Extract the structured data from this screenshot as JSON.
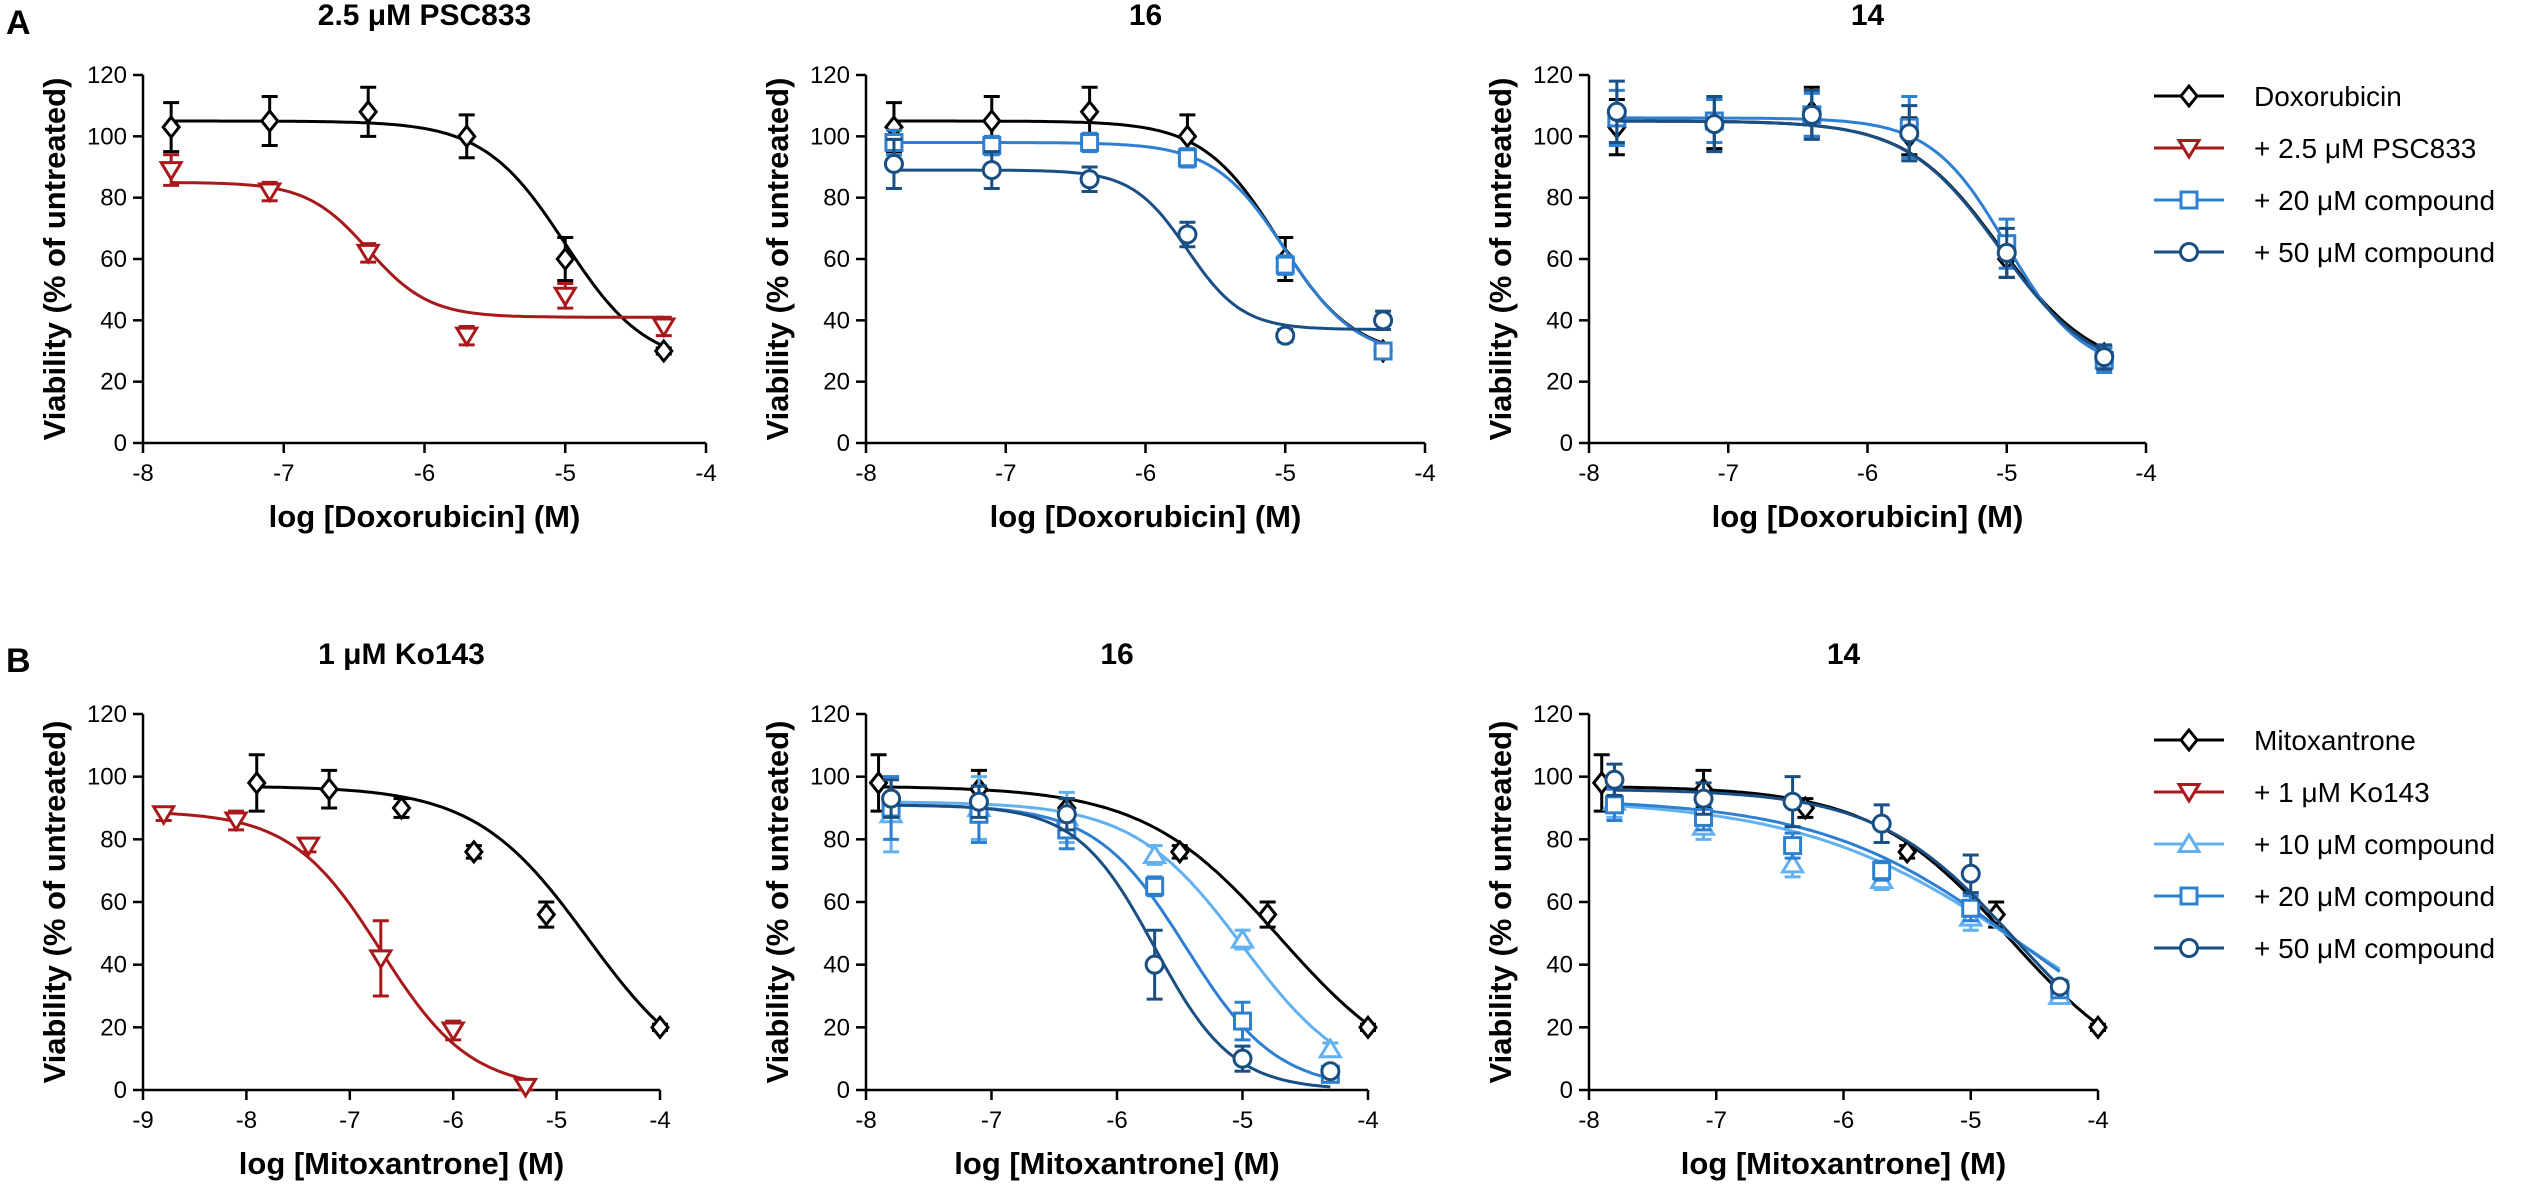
{
  "figure": {
    "panel_labels": [
      "A",
      "B"
    ]
  },
  "chart_data": [
    {
      "id": "a1",
      "panel": "A",
      "type": "line",
      "title": "2.5 μM PSC833",
      "xlabel": "log [Doxorubicin] (M)",
      "ylabel": "Viability (% of untreated)",
      "xlim": [
        -8,
        -4
      ],
      "ylim": [
        0,
        120
      ],
      "xticks": [
        -8,
        -7,
        -6,
        -5,
        -4
      ],
      "yticks": [
        0,
        20,
        40,
        60,
        80,
        100,
        120
      ],
      "series": [
        {
          "name": "Doxorubicin",
          "color": "#000000",
          "marker": "diamond",
          "x": [
            -7.8,
            -7.1,
            -6.4,
            -5.7,
            -5.0,
            -4.3
          ],
          "y": [
            103,
            105,
            108,
            100,
            60,
            30
          ],
          "err": [
            8,
            8,
            8,
            7,
            7,
            1
          ],
          "fit": {
            "top": 105,
            "bottom": 25,
            "ec50": -5.0,
            "hill": 1.5
          }
        },
        {
          "name": "+ 2.5 μM PSC833",
          "color": "#a8191b",
          "marker": "tri-down",
          "x": [
            -7.8,
            -7.1,
            -6.4,
            -5.7,
            -5.0,
            -4.3
          ],
          "y": [
            89,
            82,
            62,
            35,
            48,
            38
          ],
          "err": [
            5,
            3,
            3,
            3,
            4,
            3
          ],
          "fit": {
            "top": 85,
            "bottom": 41,
            "ec50": -6.4,
            "hill": 2.0
          }
        }
      ]
    },
    {
      "id": "a2",
      "panel": "A",
      "type": "line",
      "title": "16",
      "xlabel": "log [Doxorubicin] (M)",
      "ylabel": "Viability (% of untreated)",
      "xlim": [
        -8,
        -4
      ],
      "ylim": [
        0,
        120
      ],
      "xticks": [
        -8,
        -7,
        -6,
        -5,
        -4
      ],
      "yticks": [
        0,
        20,
        40,
        60,
        80,
        100,
        120
      ],
      "series": [
        {
          "name": "Doxorubicin",
          "color": "#000000",
          "marker": "diamond",
          "x": [
            -7.8,
            -7.1,
            -6.4,
            -5.7,
            -5.0,
            -4.3
          ],
          "y": [
            103,
            105,
            108,
            100,
            60,
            30
          ],
          "err": [
            8,
            8,
            8,
            7,
            7,
            1
          ],
          "fit": {
            "top": 105,
            "bottom": 28,
            "ec50": -5.05,
            "hill": 1.6
          }
        },
        {
          "name": "+ 20 μM compound",
          "color": "#2f7fd1",
          "marker": "square",
          "x": [
            -7.8,
            -7.1,
            -6.4,
            -5.7,
            -5.0,
            -4.3
          ],
          "y": [
            98,
            97,
            98,
            93,
            58,
            30
          ],
          "err": [
            4,
            3,
            3,
            3,
            3,
            1
          ],
          "fit": {
            "top": 98,
            "bottom": 28,
            "ec50": -5.0,
            "hill": 1.7
          }
        },
        {
          "name": "+ 50 μM compound",
          "color": "#1a4f83",
          "marker": "circle",
          "x": [
            -7.8,
            -7.1,
            -6.4,
            -5.7,
            -5.0,
            -4.3
          ],
          "y": [
            91,
            89,
            86,
            68,
            35,
            40
          ],
          "err": [
            8,
            6,
            4,
            4,
            2,
            3
          ],
          "fit": {
            "top": 89,
            "bottom": 37,
            "ec50": -5.7,
            "hill": 2.2
          }
        }
      ]
    },
    {
      "id": "a3",
      "panel": "A",
      "type": "line",
      "title": "14",
      "xlabel": "log [Doxorubicin] (M)",
      "ylabel": "Viability (% of untreated)",
      "xlim": [
        -8,
        -4
      ],
      "ylim": [
        0,
        120
      ],
      "xticks": [
        -8,
        -7,
        -6,
        -5,
        -4
      ],
      "yticks": [
        0,
        20,
        40,
        60,
        80,
        100,
        120
      ],
      "series": [
        {
          "name": "Doxorubicin",
          "color": "#000000",
          "marker": "diamond",
          "x": [
            -7.8,
            -7.1,
            -6.4,
            -5.7,
            -5.0,
            -4.3
          ],
          "y": [
            103,
            104,
            108,
            100,
            60,
            29
          ],
          "err": [
            9,
            8,
            8,
            6,
            6,
            2
          ],
          "fit": {
            "top": 105,
            "bottom": 23,
            "ec50": -5.05,
            "hill": 1.3
          }
        },
        {
          "name": "+ 20 μM compound",
          "color": "#2f7fd1",
          "marker": "square",
          "x": [
            -7.8,
            -7.1,
            -6.4,
            -5.7,
            -5.0,
            -4.3
          ],
          "y": [
            106,
            105,
            107,
            103,
            65,
            27
          ],
          "err": [
            9,
            7,
            7,
            10,
            8,
            4
          ],
          "fit": {
            "top": 106,
            "bottom": 23,
            "ec50": -5.0,
            "hill": 1.6
          }
        },
        {
          "name": "+ 50 μM compound",
          "color": "#1a4f83",
          "marker": "circle",
          "x": [
            -7.8,
            -7.1,
            -6.4,
            -5.7,
            -5.0,
            -4.3
          ],
          "y": [
            108,
            104,
            107,
            101,
            62,
            28
          ],
          "err": [
            10,
            9,
            8,
            9,
            8,
            4
          ],
          "fit": {
            "top": 105,
            "bottom": 22,
            "ec50": -5.05,
            "hill": 1.3
          }
        }
      ],
      "legend": [
        "Doxorubicin",
        "+ 2.5 μM PSC833",
        "+ 20 μM compound",
        "+ 50 μM compound"
      ]
    },
    {
      "id": "b1",
      "panel": "B",
      "type": "line",
      "title": "1 μM Ko143",
      "xlabel": "log [Mitoxantrone] (M)",
      "ylabel": "Viability (% of untreated)",
      "xlim": [
        -9,
        -4
      ],
      "ylim": [
        0,
        120
      ],
      "xticks": [
        -9,
        -8,
        -7,
        -6,
        -5,
        -4
      ],
      "yticks": [
        0,
        20,
        40,
        60,
        80,
        100,
        120
      ],
      "series": [
        {
          "name": "Mitoxantrone",
          "color": "#000000",
          "marker": "diamond",
          "x": [
            -7.9,
            -7.2,
            -6.5,
            -5.8,
            -5.1,
            -4.0
          ],
          "y": [
            98,
            96,
            90,
            76,
            56,
            20
          ],
          "err": [
            9,
            6,
            3,
            2,
            4,
            1
          ],
          "fit": {
            "top": 97,
            "bottom": 0,
            "ec50": -4.7,
            "hill": 0.8
          }
        },
        {
          "name": "+ 1 μM Ko143",
          "color": "#a8191b",
          "marker": "tri-down",
          "x": [
            -8.8,
            -8.1,
            -7.4,
            -6.7,
            -6.0,
            -5.3
          ],
          "y": [
            88,
            86,
            78,
            42,
            19,
            1
          ],
          "err": [
            2,
            3,
            2,
            12,
            3,
            1
          ],
          "fit": {
            "top": 89,
            "bottom": 0,
            "ec50": -6.7,
            "hill": 1.0
          }
        }
      ]
    },
    {
      "id": "b2",
      "panel": "B",
      "type": "line",
      "title": "16",
      "xlabel": "log [Mitoxantrone] (M)",
      "ylabel": "Viability (% of untreated)",
      "xlim": [
        -8,
        -4
      ],
      "ylim": [
        0,
        120
      ],
      "xticks": [
        -8,
        -7,
        -6,
        -5,
        -4
      ],
      "yticks": [
        0,
        20,
        40,
        60,
        80,
        100,
        120
      ],
      "series": [
        {
          "name": "Mitoxantrone",
          "color": "#000000",
          "marker": "diamond",
          "x": [
            -7.9,
            -7.1,
            -6.4,
            -5.5,
            -4.8,
            -4.0
          ],
          "y": [
            98,
            96,
            90,
            76,
            56,
            20
          ],
          "err": [
            9,
            6,
            3,
            2,
            4,
            1
          ],
          "fit": {
            "top": 97,
            "bottom": 0,
            "ec50": -4.7,
            "hill": 0.8
          }
        },
        {
          "name": "+ 10 μM compound",
          "color": "#62b0ee",
          "marker": "tri-up",
          "x": [
            -7.8,
            -7.1,
            -6.4,
            -5.7,
            -5.0,
            -4.3
          ],
          "y": [
            88,
            90,
            87,
            75,
            48,
            13
          ],
          "err": [
            12,
            10,
            8,
            3,
            3,
            2
          ],
          "fit": {
            "top": 92,
            "bottom": 0,
            "ec50": -5.0,
            "hill": 1.0
          }
        },
        {
          "name": "+ 20 μM compound",
          "color": "#2f7fd1",
          "marker": "square",
          "x": [
            -7.8,
            -7.1,
            -6.4,
            -5.7,
            -5.0,
            -4.3
          ],
          "y": [
            90,
            88,
            83,
            65,
            22,
            5
          ],
          "err": [
            10,
            9,
            6,
            3,
            6,
            2
          ],
          "fit": {
            "top": 91,
            "bottom": 0,
            "ec50": -5.45,
            "hill": 1.2
          }
        },
        {
          "name": "+ 50 μM compound",
          "color": "#1a4f83",
          "marker": "circle",
          "x": [
            -7.8,
            -7.1,
            -6.4,
            -5.7,
            -5.0,
            -4.3
          ],
          "y": [
            93,
            92,
            88,
            40,
            10,
            6
          ],
          "err": [
            6,
            5,
            5,
            11,
            4,
            1
          ],
          "fit": {
            "top": 91,
            "bottom": 0,
            "ec50": -5.7,
            "hill": 1.4
          }
        }
      ]
    },
    {
      "id": "b3",
      "panel": "B",
      "type": "line",
      "title": "14",
      "xlabel": "log [Mitoxantrone] (M)",
      "ylabel": "Viability (% of untreated)",
      "xlim": [
        -8,
        -4
      ],
      "ylim": [
        0,
        120
      ],
      "xticks": [
        -8,
        -7,
        -6,
        -5,
        -4
      ],
      "yticks": [
        0,
        20,
        40,
        60,
        80,
        100,
        120
      ],
      "series": [
        {
          "name": "Mitoxantrone",
          "color": "#000000",
          "marker": "diamond",
          "x": [
            -7.9,
            -7.1,
            -6.3,
            -5.5,
            -4.8,
            -4.0
          ],
          "y": [
            98,
            96,
            90,
            76,
            56,
            20
          ],
          "err": [
            9,
            6,
            3,
            2,
            4,
            1
          ],
          "fit": {
            "top": 97,
            "bottom": 0,
            "ec50": -4.7,
            "hill": 0.8
          }
        },
        {
          "name": "+ 10 μM compound",
          "color": "#62b0ee",
          "marker": "tri-up",
          "x": [
            -7.8,
            -7.1,
            -6.4,
            -5.7,
            -5.0,
            -4.3
          ],
          "y": [
            92,
            84,
            72,
            67,
            55,
            30
          ],
          "err": [
            5,
            4,
            4,
            3,
            4,
            2
          ],
          "fit": {
            "top": 93,
            "bottom": 0,
            "ec50": -4.6,
            "hill": 0.5
          }
        },
        {
          "name": "+ 20 μM compound",
          "color": "#2f7fd1",
          "marker": "square",
          "x": [
            -7.8,
            -7.1,
            -6.4,
            -5.7,
            -5.0,
            -4.3
          ],
          "y": [
            91,
            87,
            78,
            70,
            58,
            32
          ],
          "err": [
            5,
            4,
            4,
            3,
            4,
            2
          ],
          "fit": {
            "top": 93,
            "bottom": 0,
            "ec50": -4.6,
            "hill": 0.55
          }
        },
        {
          "name": "+ 50 μM compound",
          "color": "#1a4f83",
          "marker": "circle",
          "x": [
            -7.8,
            -7.1,
            -6.4,
            -5.7,
            -5.0,
            -4.3
          ],
          "y": [
            99,
            93,
            92,
            85,
            69,
            33
          ],
          "err": [
            5,
            5,
            8,
            6,
            6,
            2
          ],
          "fit": {
            "top": 96,
            "bottom": 0,
            "ec50": -4.65,
            "hill": 0.8
          }
        }
      ],
      "legend": [
        "Mitoxantrone",
        "+ 1 μM Ko143",
        "+ 10 μM compound",
        "+ 20 μM compound",
        "+ 50 μM compound"
      ]
    }
  ],
  "legends": {
    "doxorubicin": [
      {
        "label": "Doxorubicin",
        "color": "#000000",
        "marker": "diamond"
      },
      {
        "label": "+ 2.5 μM PSC833",
        "color": "#a8191b",
        "marker": "tri-down"
      },
      {
        "label": "+ 20 μM compound",
        "color": "#2f7fd1",
        "marker": "square"
      },
      {
        "label": "+ 50 μM compound",
        "color": "#1a4f83",
        "marker": "circle"
      }
    ],
    "mitoxantrone": [
      {
        "label": "Mitoxantrone",
        "color": "#000000",
        "marker": "diamond"
      },
      {
        "label": "+ 1 μM Ko143",
        "color": "#a8191b",
        "marker": "tri-down"
      },
      {
        "label": "+ 10 μM compound",
        "color": "#62b0ee",
        "marker": "tri-up"
      },
      {
        "label": "+ 20 μM compound",
        "color": "#2f7fd1",
        "marker": "square"
      },
      {
        "label": "+ 50 μM compound",
        "color": "#1a4f83",
        "marker": "circle"
      }
    ]
  }
}
